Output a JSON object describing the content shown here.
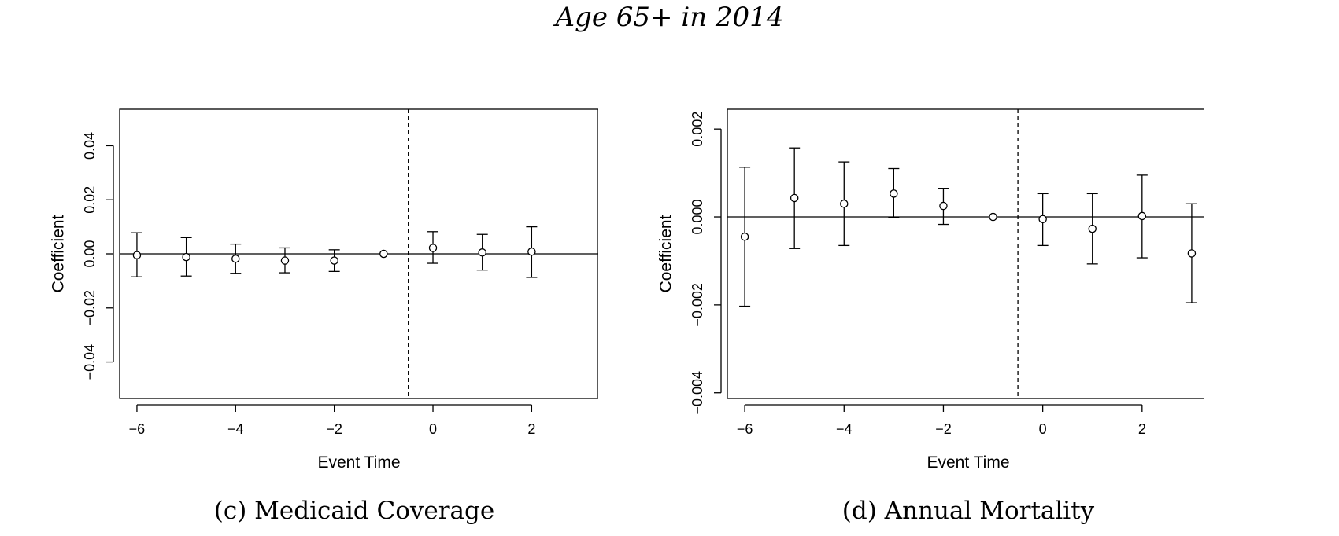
{
  "figure": {
    "title": "Age 65+ in 2014"
  },
  "chart_data": [
    {
      "type": "scatter",
      "subtype": "event-study coefficients with error bars",
      "caption": "(c) Medicaid Coverage",
      "xlabel": "Event Time",
      "ylabel": "Coefficient",
      "xlim": [
        -6.35,
        3.35
      ],
      "ylim": [
        -0.0535,
        0.0535
      ],
      "xticks": [
        -6,
        -4,
        -2,
        0,
        2
      ],
      "xtick_labels": [
        "−6",
        "−4",
        "−2",
        "0",
        "2"
      ],
      "yticks": [
        -0.04,
        -0.02,
        0.0,
        0.02,
        0.04
      ],
      "ytick_labels": [
        "−0.04",
        "−0.02",
        "0.00",
        "0.02",
        "0.04"
      ],
      "reference_vline": -0.5,
      "reference_hline": 0,
      "grid": false,
      "points": [
        {
          "x": -6,
          "y": -0.0005,
          "lower": -0.0085,
          "upper": 0.0078
        },
        {
          "x": -5,
          "y": -0.0012,
          "lower": -0.0082,
          "upper": 0.006
        },
        {
          "x": -4,
          "y": -0.0018,
          "lower": -0.0072,
          "upper": 0.0036
        },
        {
          "x": -3,
          "y": -0.0025,
          "lower": -0.007,
          "upper": 0.0022
        },
        {
          "x": -2,
          "y": -0.0025,
          "lower": -0.0065,
          "upper": 0.0015
        },
        {
          "x": -1,
          "y": 0.0,
          "lower": 0.0,
          "upper": 0.0
        },
        {
          "x": 0,
          "y": 0.0022,
          "lower": -0.0035,
          "upper": 0.0082
        },
        {
          "x": 1,
          "y": 0.0005,
          "lower": -0.006,
          "upper": 0.0072
        },
        {
          "x": 2,
          "y": 0.0008,
          "lower": -0.0087,
          "upper": 0.01
        }
      ]
    },
    {
      "type": "scatter",
      "subtype": "event-study coefficients with error bars",
      "caption": "(d) Annual Mortality",
      "xlabel": "Event Time",
      "ylabel": "Coefficient",
      "xlim": [
        -6.35,
        3.35
      ],
      "ylim": [
        -0.00413,
        0.00245
      ],
      "xticks": [
        -6,
        -4,
        -2,
        0,
        2
      ],
      "xtick_labels": [
        "−6",
        "−4",
        "−2",
        "0",
        "2"
      ],
      "yticks": [
        -0.004,
        -0.002,
        0.0,
        0.002
      ],
      "ytick_labels": [
        "−0.004",
        "−0.002",
        "0.000",
        "0.002"
      ],
      "reference_vline": -0.5,
      "reference_hline": 0,
      "grid": false,
      "points": [
        {
          "x": -6,
          "y": -0.00045,
          "lower": -0.00203,
          "upper": 0.00113
        },
        {
          "x": -5,
          "y": 0.00043,
          "lower": -0.00072,
          "upper": 0.00157
        },
        {
          "x": -4,
          "y": 0.0003,
          "lower": -0.00065,
          "upper": 0.00125
        },
        {
          "x": -3,
          "y": 0.00053,
          "lower": -2e-05,
          "upper": 0.0011
        },
        {
          "x": -2,
          "y": 0.00025,
          "lower": -0.00017,
          "upper": 0.00065
        },
        {
          "x": -1,
          "y": 0.0,
          "lower": 0.0,
          "upper": 0.0
        },
        {
          "x": 0,
          "y": -5e-05,
          "lower": -0.00065,
          "upper": 0.00053
        },
        {
          "x": 1,
          "y": -0.00027,
          "lower": -0.00107,
          "upper": 0.00053
        },
        {
          "x": 2,
          "y": 2e-05,
          "lower": -0.00093,
          "upper": 0.00095
        },
        {
          "x": 3,
          "y": -0.00083,
          "lower": -0.00195,
          "upper": 0.0003
        }
      ]
    }
  ]
}
